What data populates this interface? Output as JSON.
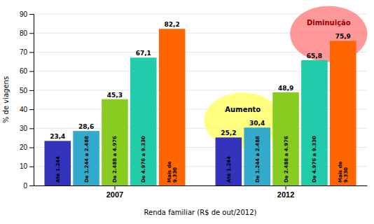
{
  "chart_data": {
    "type": "bar",
    "xlabel": "Renda familiar (R$ de out/2012)",
    "ylabel": "% de viagens",
    "categories": [
      "2007",
      "2012"
    ],
    "series": [
      {
        "name": "Até 1.244",
        "color": "#3333bb",
        "values": [
          23.4,
          25.2
        ],
        "value_labels": [
          "23,4",
          "25,2"
        ]
      },
      {
        "name": "De 1.244 a 2.488",
        "color": "#33aacc",
        "values": [
          28.6,
          30.4
        ],
        "value_labels": [
          "28,6",
          "30,4"
        ]
      },
      {
        "name": "De 2.488 a 4.976",
        "color": "#88cc22",
        "values": [
          45.3,
          48.9
        ],
        "value_labels": [
          "45,3",
          "48,9"
        ]
      },
      {
        "name": "De 4.976 a 9.330",
        "color": "#22ccaa",
        "values": [
          67.1,
          65.8
        ],
        "value_labels": [
          "67,1",
          "65,8"
        ]
      },
      {
        "name": "Mais de\n9.330",
        "color": "#ff6600",
        "values": [
          82.2,
          75.9
        ],
        "value_labels": [
          "82,2",
          "75,9"
        ]
      }
    ],
    "ylim": [
      0,
      90
    ],
    "yticks": [
      0,
      10,
      20,
      30,
      40,
      50,
      60,
      70,
      80,
      90
    ],
    "grid": true,
    "data_labels": true,
    "annotations": [
      {
        "text": "Aumento",
        "color": "#ffff55"
      },
      {
        "text": "Diminuição",
        "color": "#ff7777"
      }
    ]
  }
}
